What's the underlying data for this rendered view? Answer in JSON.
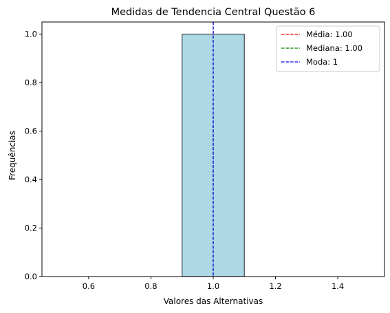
{
  "chart_data": {
    "type": "bar",
    "title": "Medidas de Tendencia Central Questão 6",
    "xlabel": "Valores das Alternativas",
    "ylabel": "Frequências",
    "xlim": [
      0.45,
      1.55
    ],
    "ylim": [
      0,
      1.05
    ],
    "xticks": [
      "0.6",
      "0.8",
      "1.0",
      "1.2",
      "1.4"
    ],
    "xtick_values": [
      0.6,
      0.8,
      1.0,
      1.2,
      1.4
    ],
    "yticks": [
      "0.0",
      "0.2",
      "0.4",
      "0.6",
      "0.8",
      "1.0"
    ],
    "ytick_values": [
      0.0,
      0.2,
      0.4,
      0.6,
      0.8,
      1.0
    ],
    "baseline_segments": [
      [
        0.5,
        0.9
      ],
      [
        1.1,
        1.5
      ]
    ],
    "bars": [
      {
        "x_start": 0.9,
        "x_end": 1.1,
        "value": 1.0,
        "color": "#add8e6",
        "edge_color": "#000000"
      }
    ],
    "vlines": [
      {
        "x": 1.0,
        "label": "Média: 1.00",
        "color": "#ff0000"
      },
      {
        "x": 1.0,
        "label": "Mediana: 1.00",
        "color": "#008000"
      },
      {
        "x": 1.0,
        "label": "Moda: 1",
        "color": "#0000ff"
      }
    ],
    "legend": {
      "position": "top-right",
      "entries": [
        "Média: 1.00",
        "Mediana: 1.00",
        "Moda: 1"
      ]
    },
    "grid": false
  }
}
